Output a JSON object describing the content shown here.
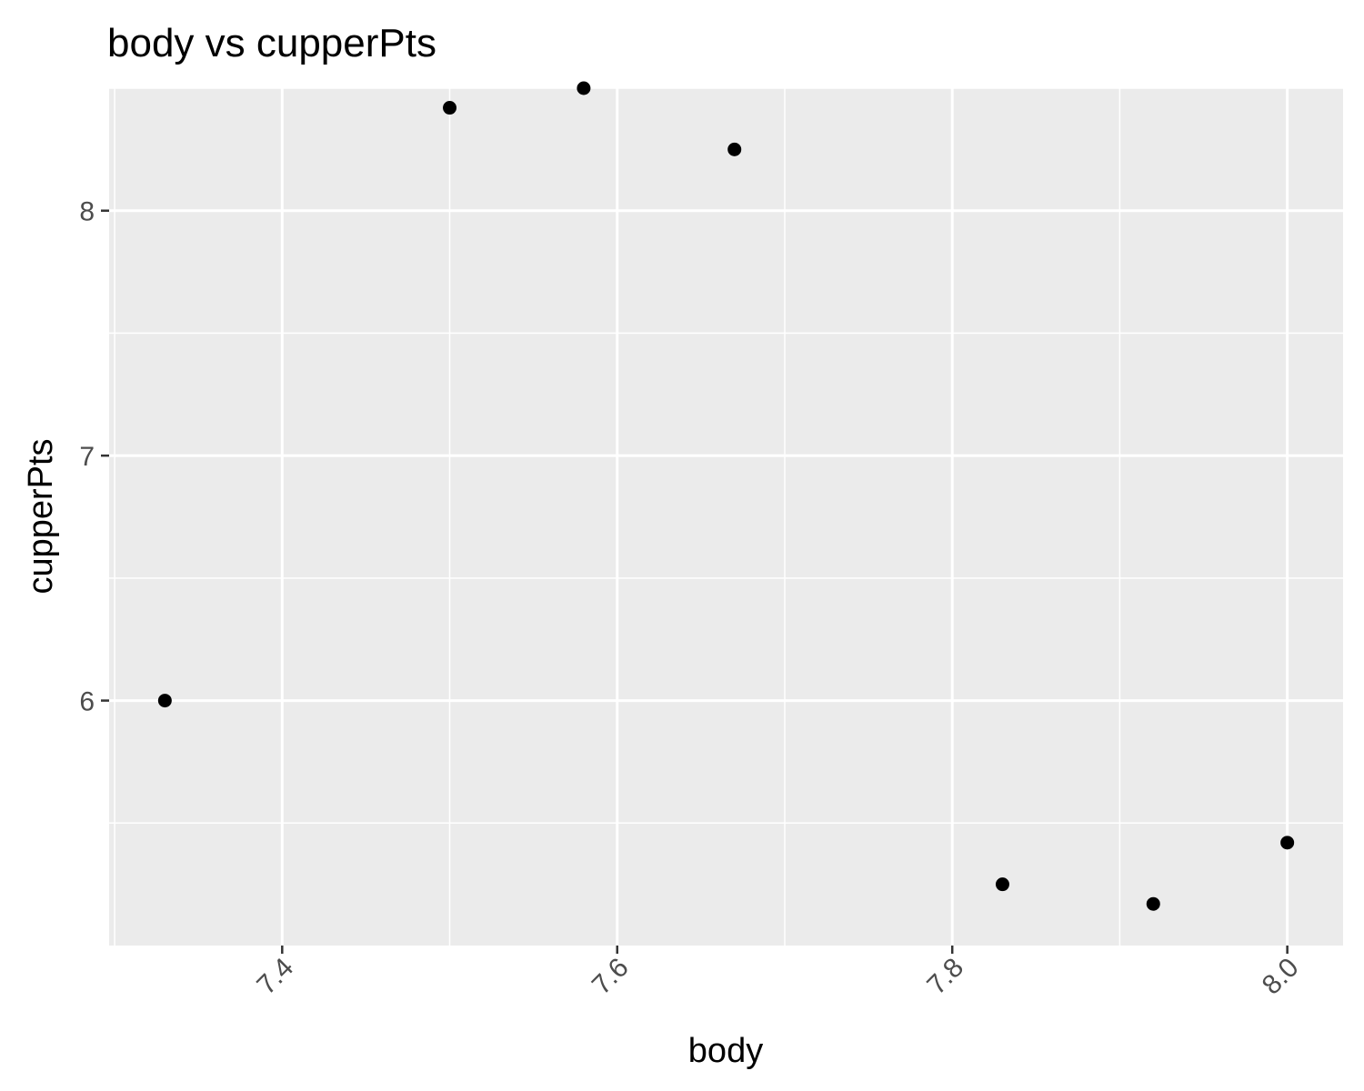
{
  "chart_data": {
    "type": "scatter",
    "title": "body vs cupperPts",
    "xlabel": "body",
    "ylabel": "cupperPts",
    "xlim": [
      7.2967,
      8.0333
    ],
    "ylim": [
      5.0,
      8.5
    ],
    "xticks": [
      7.4,
      7.6,
      7.8,
      8.0
    ],
    "xtick_labels": [
      "7.4",
      "7.6",
      "7.8",
      "8.0"
    ],
    "xminor": [
      7.3,
      7.5,
      7.7,
      7.9
    ],
    "yticks": [
      6,
      7,
      8
    ],
    "ytick_labels": [
      "6",
      "7",
      "8"
    ],
    "yminor": [
      5.5,
      6.5,
      7.5,
      8.5
    ],
    "grid": true,
    "point_color": "#000000",
    "panel_color": "#ebebeb",
    "points": [
      {
        "x": 7.33,
        "y": 6.0
      },
      {
        "x": 7.5,
        "y": 8.42
      },
      {
        "x": 7.58,
        "y": 8.5
      },
      {
        "x": 7.67,
        "y": 8.25
      },
      {
        "x": 7.83,
        "y": 5.25
      },
      {
        "x": 7.92,
        "y": 5.17
      },
      {
        "x": 8.0,
        "y": 5.42
      }
    ]
  }
}
